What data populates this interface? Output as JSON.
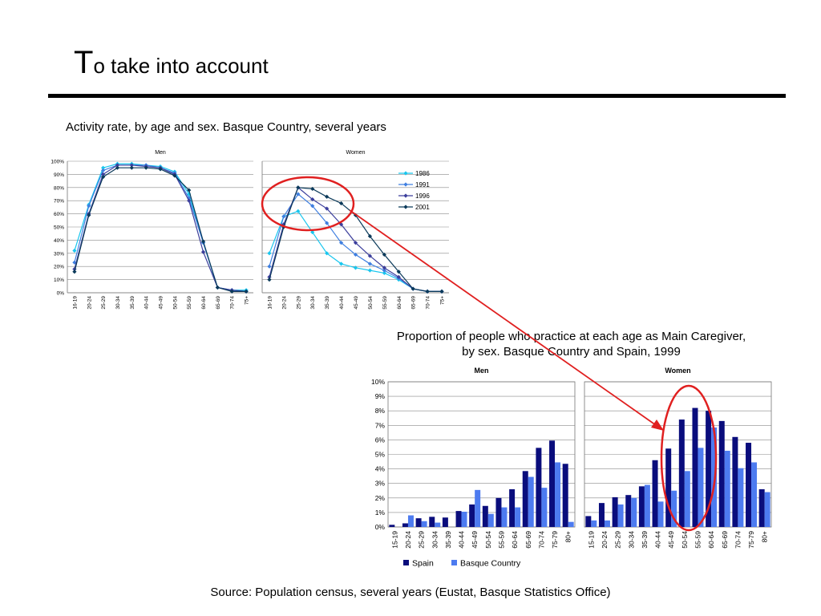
{
  "slide": {
    "title_cap": "T",
    "title_rest": "o take into account",
    "caption_activity": "Activity rate, by age and sex. Basque Country, several years",
    "caption_care": "Proportion of people who practice at each age as Main Caregiver, by sex. Basque Country and Spain, 1999",
    "source": "Source:  Population census, several years (Eustat, Basque Statistics Office)"
  },
  "colors": {
    "series_1986": "#19C6EE",
    "series_1991": "#3F7FE0",
    "series_1996": "#3C3F9C",
    "series_2001": "#0B3A5A",
    "spain": "#0A0D7C",
    "basque": "#4D7BF0",
    "highlight": "#E02020"
  },
  "chart_data": [
    {
      "type": "line",
      "panels": [
        "Men",
        "Women"
      ],
      "categories": [
        "16-19",
        "20-24",
        "25-29",
        "30-34",
        "35-39",
        "40-44",
        "45-49",
        "50-54",
        "55-59",
        "60-64",
        "65-69",
        "70-74",
        "75+"
      ],
      "yticks": [
        "0%",
        "10%",
        "20%",
        "30%",
        "40%",
        "50%",
        "60%",
        "70%",
        "80%",
        "90%",
        "100%"
      ],
      "ylim": [
        0,
        100
      ],
      "grid": true,
      "legend": "top-right",
      "series": [
        {
          "name": "1986",
          "men": [
            32,
            67,
            95,
            98,
            98,
            97,
            96,
            92,
            75,
            38,
            4,
            2,
            2
          ],
          "women": [
            30,
            58,
            62,
            46,
            30,
            22,
            19,
            17,
            15,
            10,
            3,
            1,
            1
          ]
        },
        {
          "name": "1991",
          "men": [
            23,
            66,
            93,
            97,
            97,
            97,
            95,
            91,
            72,
            38,
            4,
            2,
            1
          ],
          "women": [
            20,
            58,
            75,
            66,
            53,
            38,
            29,
            22,
            17,
            11,
            3,
            1,
            1
          ]
        },
        {
          "name": "1996",
          "men": [
            18,
            60,
            90,
            97,
            97,
            96,
            95,
            90,
            70,
            31,
            4,
            2,
            1
          ],
          "women": [
            12,
            52,
            80,
            71,
            64,
            52,
            38,
            28,
            19,
            12,
            3,
            1,
            1
          ]
        },
        {
          "name": "2001",
          "men": [
            16,
            59,
            88,
            95,
            95,
            95,
            94,
            89,
            78,
            39,
            4,
            1,
            1
          ],
          "women": [
            10,
            50,
            80,
            79,
            73,
            68,
            59,
            43,
            29,
            16,
            3,
            1,
            1
          ]
        }
      ]
    },
    {
      "type": "bar",
      "panels": [
        "Men",
        "Women"
      ],
      "categories": [
        "15-19",
        "20-24",
        "25-29",
        "30-34",
        "35-39",
        "40-44",
        "45-49",
        "50-54",
        "55-59",
        "60-64",
        "65-69",
        "70-74",
        "75-79",
        "80+"
      ],
      "yticks": [
        "0%",
        "1%",
        "2%",
        "3%",
        "4%",
        "5%",
        "6%",
        "7%",
        "8%",
        "9%",
        "10%"
      ],
      "ylim": [
        0,
        10
      ],
      "grid": true,
      "legend": "bottom",
      "series": [
        {
          "name": "Spain",
          "men": [
            0.15,
            0.25,
            0.6,
            0.7,
            0.65,
            1.1,
            1.55,
            1.45,
            2.0,
            2.6,
            3.85,
            5.45,
            5.95,
            4.35
          ],
          "women": [
            0.75,
            1.65,
            2.05,
            2.2,
            2.8,
            4.6,
            5.4,
            7.4,
            8.2,
            8.0,
            7.3,
            6.2,
            5.8,
            2.6
          ]
        },
        {
          "name": "Basque Country",
          "men": [
            0,
            0.8,
            0.4,
            0.3,
            0,
            1.05,
            2.55,
            0.9,
            1.35,
            1.35,
            3.45,
            2.7,
            4.45,
            0.35
          ],
          "women": [
            0.45,
            0.45,
            1.55,
            2.0,
            2.9,
            1.75,
            2.5,
            3.85,
            5.45,
            6.85,
            5.25,
            4.05,
            4.45,
            2.4
          ]
        }
      ]
    }
  ]
}
